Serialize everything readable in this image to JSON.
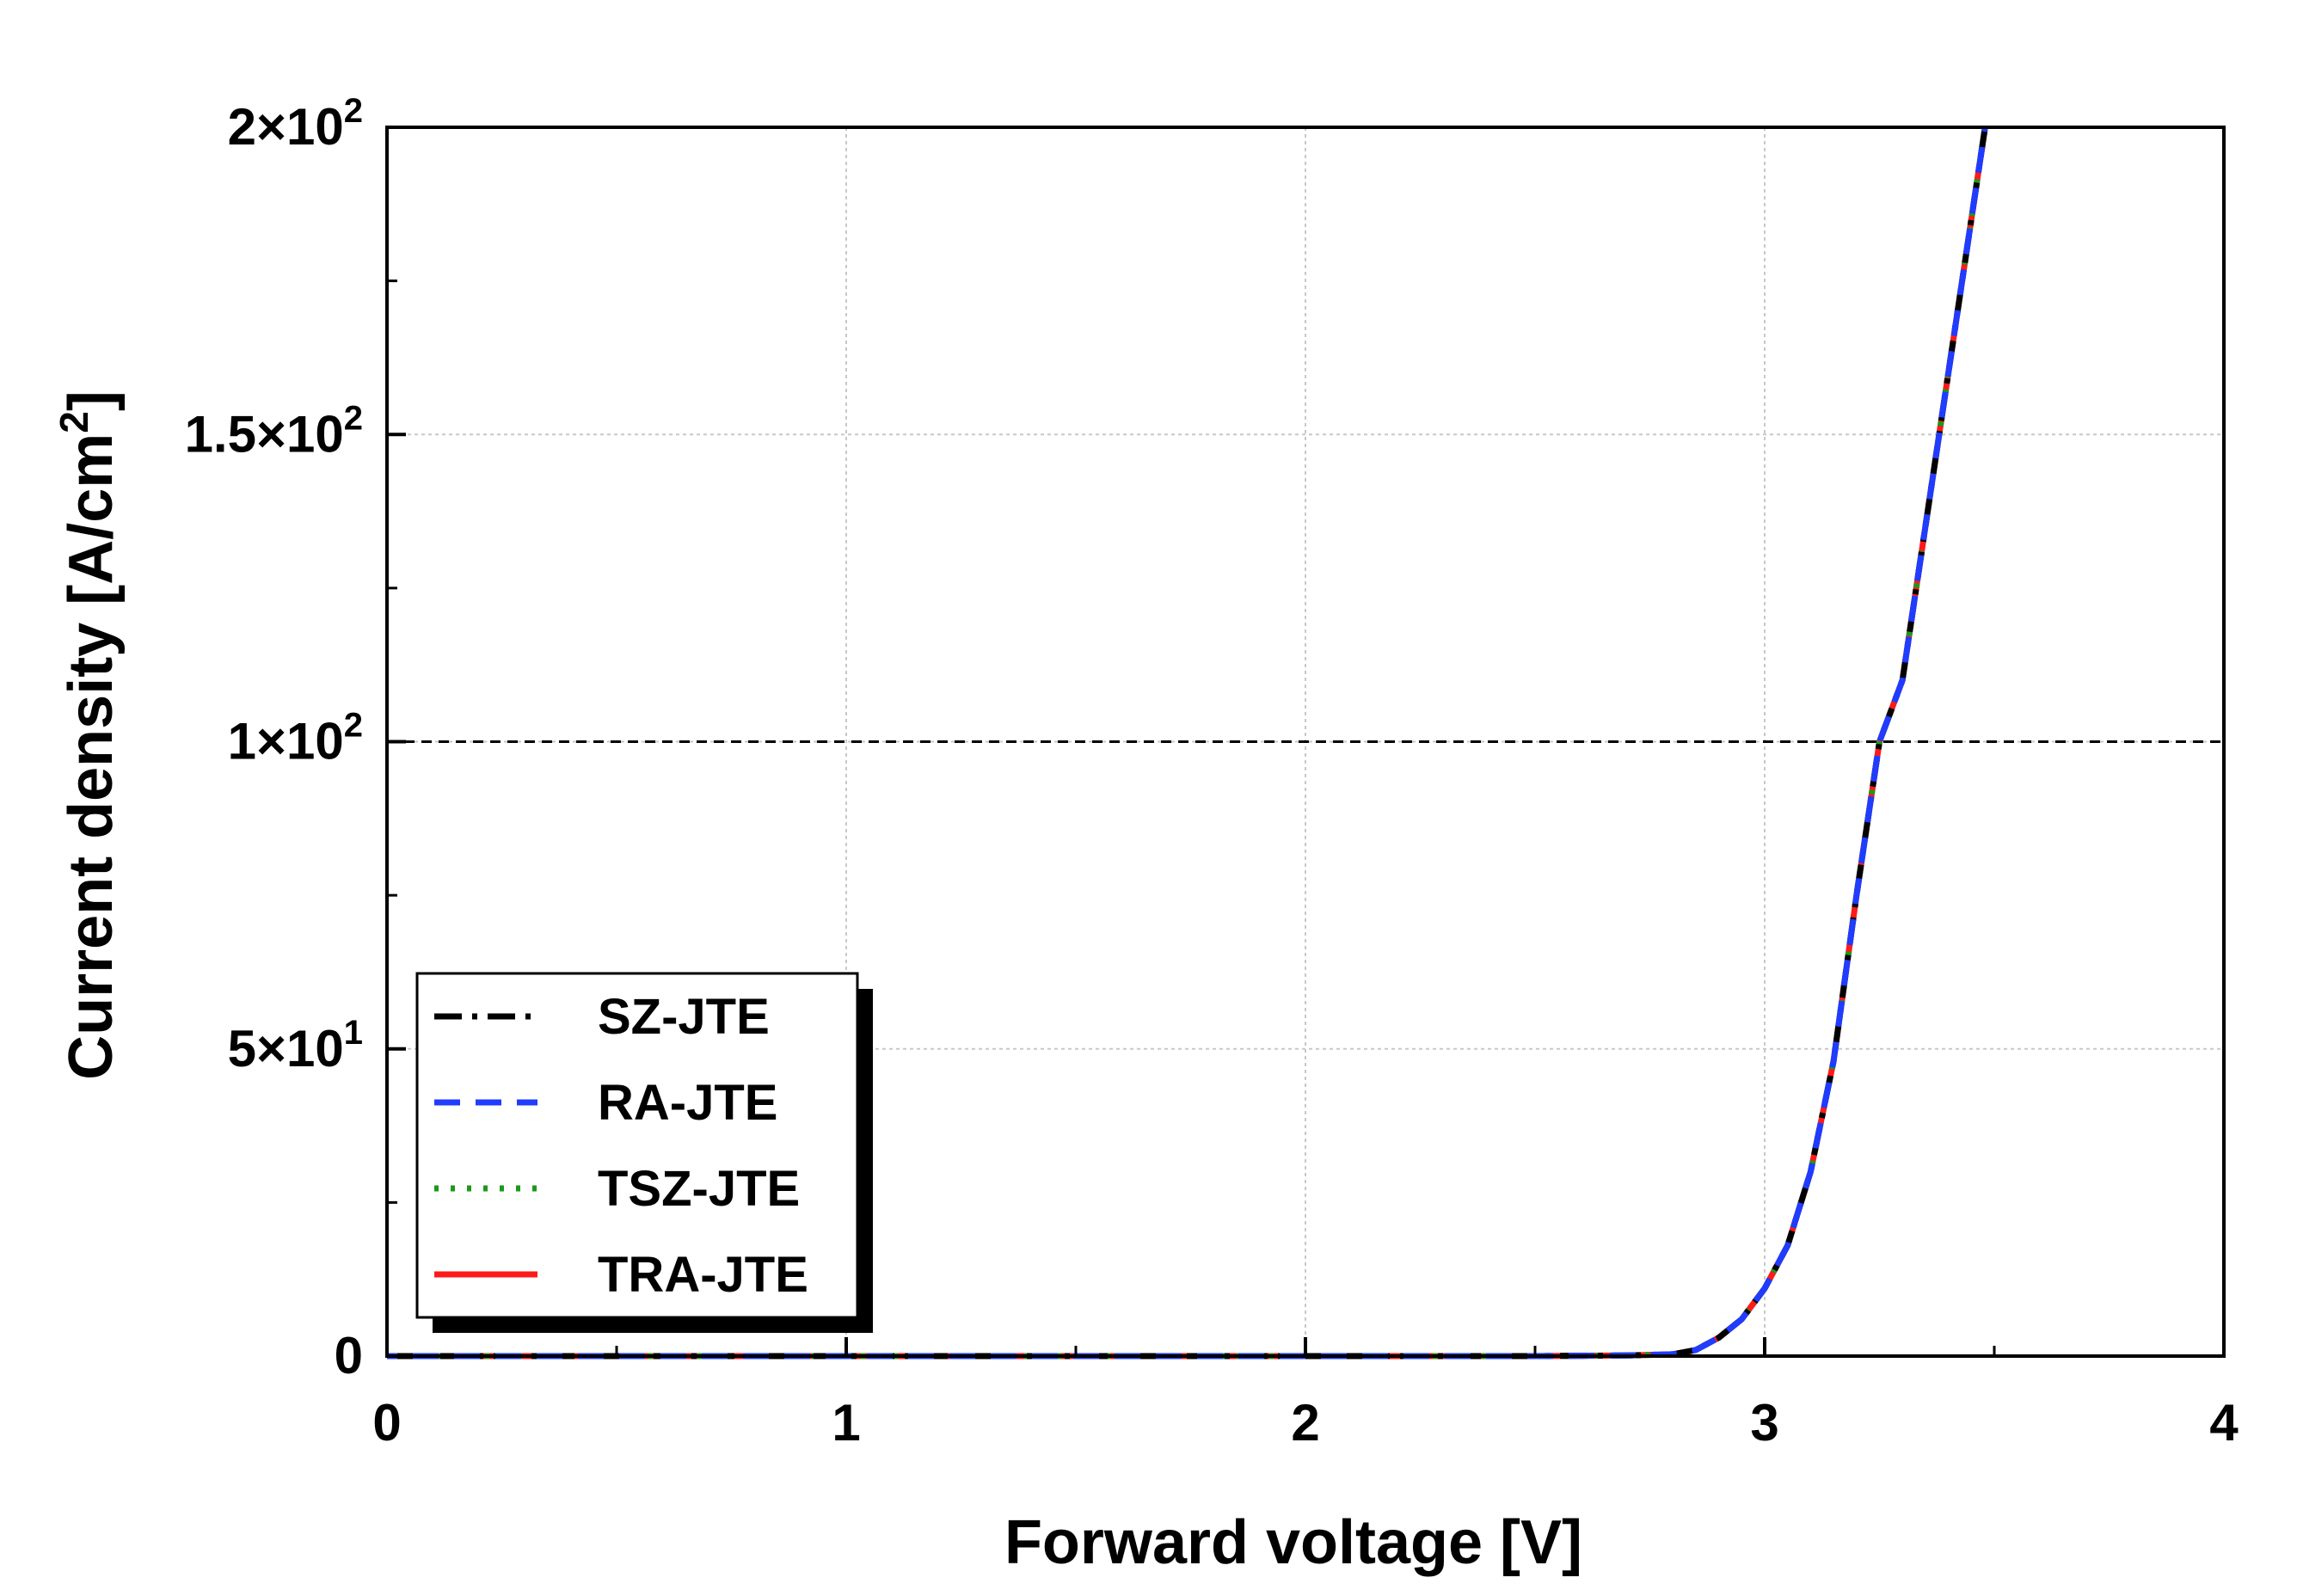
{
  "chart_data": {
    "type": "line",
    "xlabel": "Forward voltage [V]",
    "ylabel": "Current density [A/cm",
    "ylabel_superscript": "2",
    "ylabel_suffix": "]",
    "xlim": [
      0,
      4
    ],
    "ylim": [
      0,
      200
    ],
    "x_ticks": [
      {
        "value": 0,
        "label": "0"
      },
      {
        "value": 1,
        "label": "1"
      },
      {
        "value": 2,
        "label": "2"
      },
      {
        "value": 3,
        "label": "3"
      },
      {
        "value": 4,
        "label": "4"
      }
    ],
    "y_ticks": [
      {
        "value": 0,
        "mantissa": "0",
        "exponent": ""
      },
      {
        "value": 50,
        "mantissa": "5×10",
        "exponent": "1"
      },
      {
        "value": 100,
        "mantissa": "1×10",
        "exponent": "2"
      },
      {
        "value": 150,
        "mantissa": "1.5×10",
        "exponent": "2"
      },
      {
        "value": 200,
        "mantissa": "2×10",
        "exponent": "2"
      }
    ],
    "x_minor_ticks": [
      0.5,
      1.5,
      2.5,
      3.5
    ],
    "y_minor_ticks": [
      25,
      75,
      125,
      175
    ],
    "grid": true,
    "reference_line": {
      "y": 100,
      "style": "dashed",
      "color": "#000000"
    },
    "legend": {
      "position": "bottom-left",
      "shadow": true
    },
    "x": [
      0,
      0.5,
      1.0,
      1.5,
      2.0,
      2.5,
      2.7,
      2.8,
      2.85,
      2.9,
      2.95,
      3.0,
      3.05,
      3.1,
      3.15,
      3.2,
      3.25,
      3.3,
      3.35,
      3.4,
      3.45,
      3.48
    ],
    "series": [
      {
        "name": "SZ-JTE",
        "color": "#000000",
        "dash": "dashdot",
        "values": [
          0,
          0,
          0,
          0,
          0,
          0,
          0.1,
          0.3,
          1,
          3,
          6,
          11,
          18,
          30,
          48,
          75,
          100,
          110,
          135,
          160,
          185,
          200
        ]
      },
      {
        "name": "RA-JTE",
        "color": "#1f3cff",
        "dash": "dashed",
        "values": [
          0,
          0,
          0,
          0,
          0,
          0,
          0.1,
          0.3,
          1,
          3,
          6,
          11,
          18,
          30,
          48,
          75,
          100,
          110,
          135,
          160,
          185,
          200
        ]
      },
      {
        "name": "TSZ-JTE",
        "color": "#1a9a1a",
        "dash": "dotted",
        "values": [
          0,
          0,
          0,
          0,
          0,
          0,
          0.1,
          0.3,
          1,
          3,
          6,
          11,
          18,
          30,
          48,
          75,
          100,
          110,
          135,
          160,
          185,
          200
        ]
      },
      {
        "name": "TRA-JTE",
        "color": "#ff1a1a",
        "dash": "solid",
        "values": [
          0,
          0,
          0,
          0,
          0,
          0,
          0.1,
          0.3,
          1,
          3,
          6,
          11,
          18,
          30,
          48,
          75,
          100,
          110,
          135,
          160,
          185,
          200
        ]
      }
    ]
  }
}
